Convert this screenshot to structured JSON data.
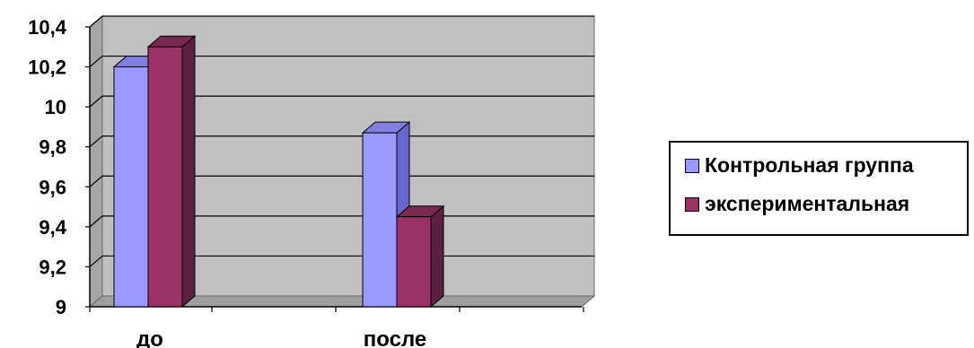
{
  "chart_data": {
    "type": "bar",
    "categories": [
      "до",
      "после"
    ],
    "series": [
      {
        "name": "Контрольная группа",
        "values": [
          10.2,
          9.87
        ],
        "color": "#9999ff",
        "side": "#6666cc",
        "top": "#8080e0"
      },
      {
        "name": "экспериментальная",
        "values": [
          10.3,
          9.45
        ],
        "color": "#993366",
        "side": "#5e1f3e",
        "top": "#7a2850"
      }
    ],
    "ylim": [
      9,
      10.4
    ],
    "y_ticks": [
      "9",
      "9,2",
      "9,4",
      "9,6",
      "9,8",
      "10",
      "10,2",
      "10,4"
    ],
    "grid": true,
    "legend_position": "right",
    "plot_background": "#c0c0c0"
  }
}
